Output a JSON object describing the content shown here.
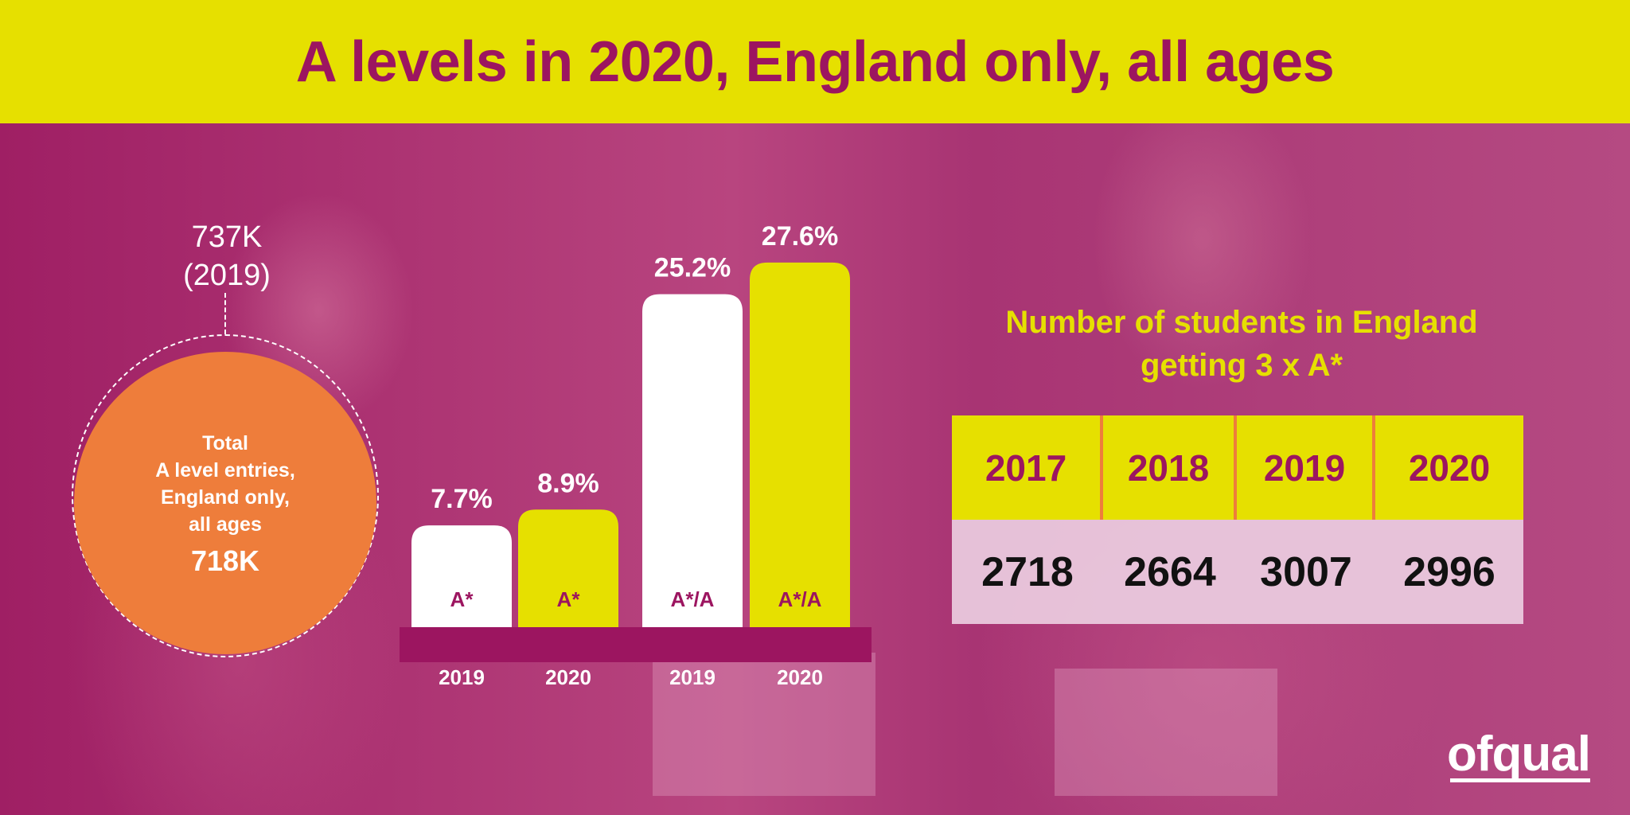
{
  "title": "A levels in 2020, England only, all ages",
  "colors": {
    "header_bg": "#e6e000",
    "title_text": "#9c1560",
    "background": "#b23a78",
    "circle": "#ee7d3b",
    "bar_2019": "#ffffff",
    "bar_2020": "#e6e000",
    "base_strip": "#9c1560"
  },
  "total_entries": {
    "previous_value": "737K",
    "previous_year": "(2019)",
    "label_lines": [
      "Total",
      "A level entries,",
      "England only,",
      "all ages"
    ],
    "value": "718K"
  },
  "chart_data": {
    "type": "bar",
    "categories": [
      "2019",
      "2020",
      "2019",
      "2020"
    ],
    "values": [
      7.7,
      8.9,
      25.2,
      27.6
    ],
    "value_labels": [
      "7.7%",
      "8.9%",
      "25.2%",
      "27.6%"
    ],
    "inner_labels": [
      "A*",
      "A*",
      "A*/A",
      "A*/A"
    ],
    "year_labels": [
      "2019",
      "2020",
      "2019",
      "2020"
    ],
    "title": "",
    "xlabel": "",
    "ylabel": "",
    "ylim": [
      0,
      30
    ]
  },
  "students_table": {
    "title_lines": [
      "Number of students in England",
      "getting 3 x A*"
    ],
    "years": [
      "2017",
      "2018",
      "2019",
      "2020"
    ],
    "counts": [
      "2718",
      "2664",
      "3007",
      "2996"
    ]
  },
  "logo": "ofqual"
}
